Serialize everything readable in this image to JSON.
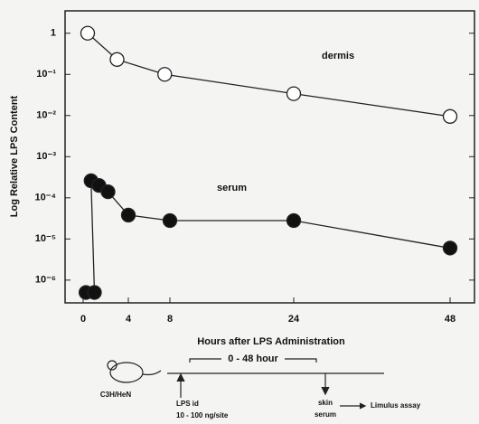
{
  "chart_data": {
    "type": "line",
    "x_label": "Hours after LPS  Administration",
    "y_label": "Log Relative LPS Content",
    "log_y": true,
    "xlim": [
      -1.6,
      52
    ],
    "xticks": [
      0,
      4,
      8,
      24,
      48
    ],
    "ylim": [
      2.8e-07,
      3.5
    ],
    "yticks": [
      {
        "value": 1,
        "label": "1"
      },
      {
        "value": 0.1,
        "label": "10⁻¹"
      },
      {
        "value": 0.01,
        "label": "10⁻²"
      },
      {
        "value": 0.001,
        "label": "10⁻³"
      },
      {
        "value": 0.0001,
        "label": "10⁻⁴"
      },
      {
        "value": 1e-05,
        "label": "10⁻⁵"
      },
      {
        "value": 1e-06,
        "label": "10⁻⁶"
      }
    ],
    "series": [
      {
        "name": "dermis",
        "color": "#ffffff",
        "x": [
          0.4,
          3,
          7.5,
          24,
          48
        ],
        "values": [
          1,
          0.23,
          0.1,
          0.034,
          0.0095
        ]
      },
      {
        "name": "serum",
        "color": "#111111",
        "x": [
          0.25,
          1,
          0.7,
          1.4,
          2.2,
          4,
          8,
          24,
          48
        ],
        "values": [
          5e-07,
          5e-07,
          0.00026,
          0.0002,
          0.00014,
          3.8e-05,
          2.8e-05,
          2.8e-05,
          6e-06
        ]
      }
    ],
    "protocol": {
      "strain": "C3H/HeN",
      "interval": "0 - 48 hour",
      "injection": "LPS id",
      "dose": "10 - 100 ng/site",
      "sample_1": "skin",
      "sample_2": "serum",
      "assay": "Limulus assay"
    }
  }
}
